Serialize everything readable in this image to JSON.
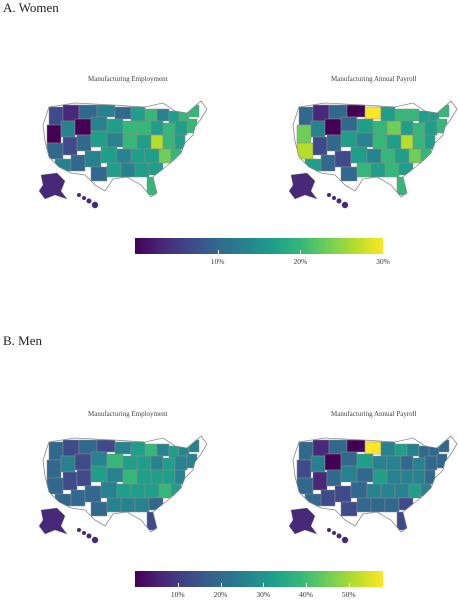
{
  "sections": [
    {
      "title": "A. Women",
      "maps": [
        {
          "title": "Manufacturing Employment"
        },
        {
          "title": "Manufacturing Annual Payroll"
        }
      ],
      "legend": {
        "min": 0,
        "max": 30,
        "ticks": [
          "10%",
          "20%",
          "30%"
        ],
        "tick_values": [
          10,
          20,
          30
        ]
      }
    },
    {
      "title": "B. Men",
      "maps": [
        {
          "title": "Manufacturing Employment"
        },
        {
          "title": "Manufacturing Annual Payroll"
        }
      ],
      "legend": {
        "min": 0,
        "max": 58,
        "ticks": [
          "10%",
          "20%",
          "30%",
          "40%",
          "50%"
        ],
        "tick_values": [
          10,
          20,
          30,
          40,
          50
        ]
      }
    }
  ],
  "colors": {
    "viridis": [
      "#440154",
      "#482878",
      "#3e4a89",
      "#31688e",
      "#26828e",
      "#1f9e89",
      "#35b779",
      "#6ece58",
      "#b5de2b",
      "#fde725"
    ],
    "state_border": "#8a8a8a"
  }
}
